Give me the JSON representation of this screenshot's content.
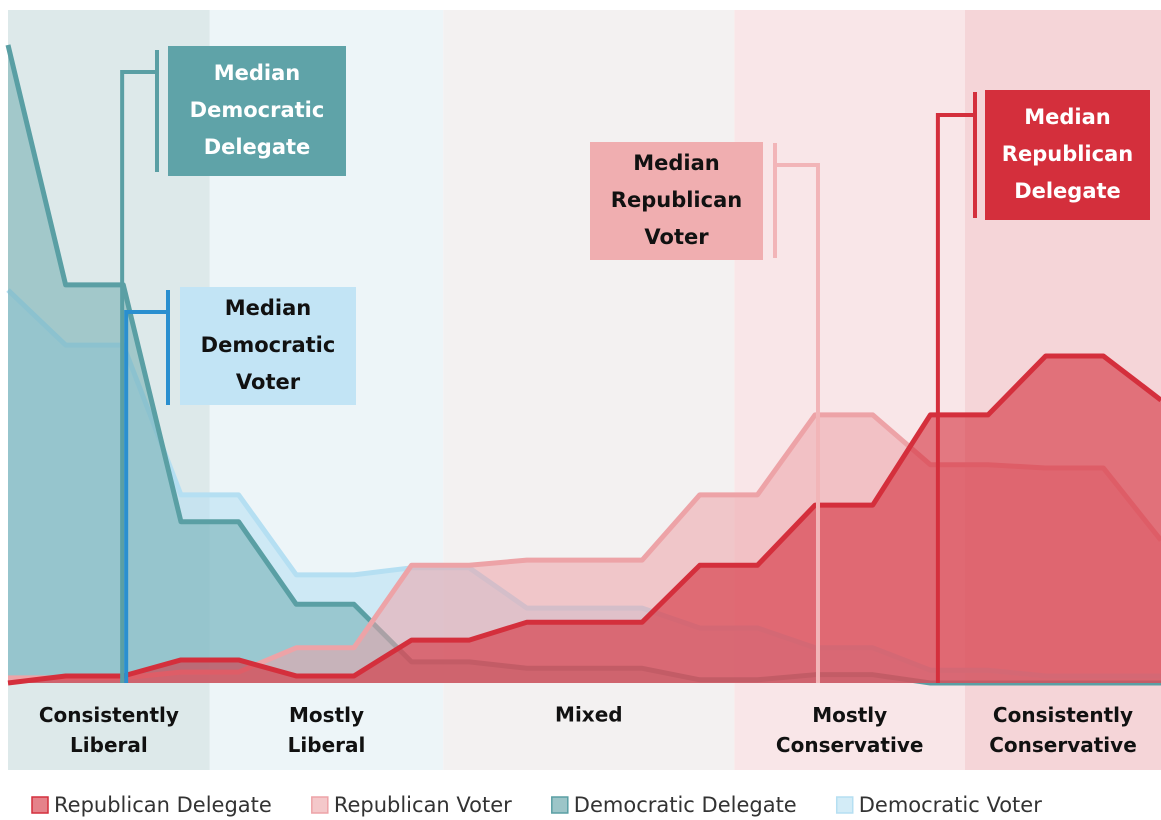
{
  "chart_data": {
    "type": "area",
    "x": [
      0,
      1,
      2,
      3,
      4,
      5,
      6,
      7,
      8,
      9,
      10,
      11,
      12,
      13,
      14,
      15,
      16,
      17,
      18,
      19,
      20
    ],
    "xlim": [
      0,
      20
    ],
    "ylim": [
      0,
      100
    ],
    "regions": [
      {
        "label": "Consistently Liberal",
        "x": [
          0,
          3.5
        ],
        "color": "#dde9ea"
      },
      {
        "label": "Mostly Liberal",
        "x": [
          3.5,
          7.55
        ],
        "color": "#edf5f8"
      },
      {
        "label": "Mixed",
        "x": [
          7.55,
          12.6
        ],
        "color": "#f3f1f1"
      },
      {
        "label": "Mostly Conservative",
        "x": [
          12.6,
          16.6
        ],
        "color": "#f9e6e8"
      },
      {
        "label": "Consistently Conservative",
        "x": [
          16.6,
          20
        ],
        "color": "#f5d5d8"
      }
    ],
    "series": [
      {
        "name": "Democratic Voter",
        "color": "#b5dff2",
        "values": [
          61.4,
          52.8,
          52.8,
          29.4,
          29.4,
          16.9,
          16.9,
          18.0,
          18.0,
          11.7,
          11.7,
          11.7,
          8.6,
          8.6,
          5.5,
          5.5,
          2.0,
          2.0,
          1.1,
          1.1,
          1.1
        ]
      },
      {
        "name": "Democratic Delegate",
        "color": "#5a9fa4",
        "values": [
          99.7,
          62.2,
          62.2,
          25.2,
          25.2,
          12.3,
          12.3,
          3.3,
          3.3,
          2.3,
          2.3,
          2.3,
          0.5,
          0.5,
          1.3,
          1.3,
          0,
          0,
          0,
          0,
          0
        ]
      },
      {
        "name": "Republican Voter",
        "color": "#eda3a7",
        "values": [
          0.8,
          0.8,
          0.8,
          1.7,
          1.7,
          5.5,
          5.5,
          18.4,
          18.4,
          19.2,
          19.2,
          19.2,
          29.4,
          29.4,
          41.9,
          41.9,
          34.1,
          34.1,
          33.6,
          33.6,
          22.3
        ]
      },
      {
        "name": "Republican Delegate",
        "color": "#d42f3c",
        "values": [
          0,
          1.1,
          1.1,
          3.6,
          3.6,
          1.1,
          1.1,
          6.7,
          6.7,
          9.5,
          9.5,
          9.5,
          18.4,
          18.4,
          27.8,
          27.8,
          41.9,
          41.9,
          51.1,
          51.1,
          44.2
        ]
      }
    ],
    "legend_order": [
      3,
      2,
      1,
      0
    ],
    "medians": [
      {
        "label": "Median Democratic Delegate",
        "x": 1.98,
        "color": "#5a9fa4",
        "box_color": "#5fa3a8",
        "text_color": "#ffffff"
      },
      {
        "label": "Median Democratic Voter",
        "x": 2.05,
        "color": "#2a8fcf",
        "box_color": "#c2e4f5",
        "text_color": "#111111"
      },
      {
        "label": "Median Republican Voter",
        "x": 14.05,
        "color": "#f2b5b8",
        "box_color": "#f0aeb0",
        "text_color": "#111111"
      },
      {
        "label": "Median Republican Delegate",
        "x": 16.13,
        "color": "#d42f3c",
        "box_color": "#d42f3c",
        "text_color": "#ffffff"
      }
    ]
  }
}
